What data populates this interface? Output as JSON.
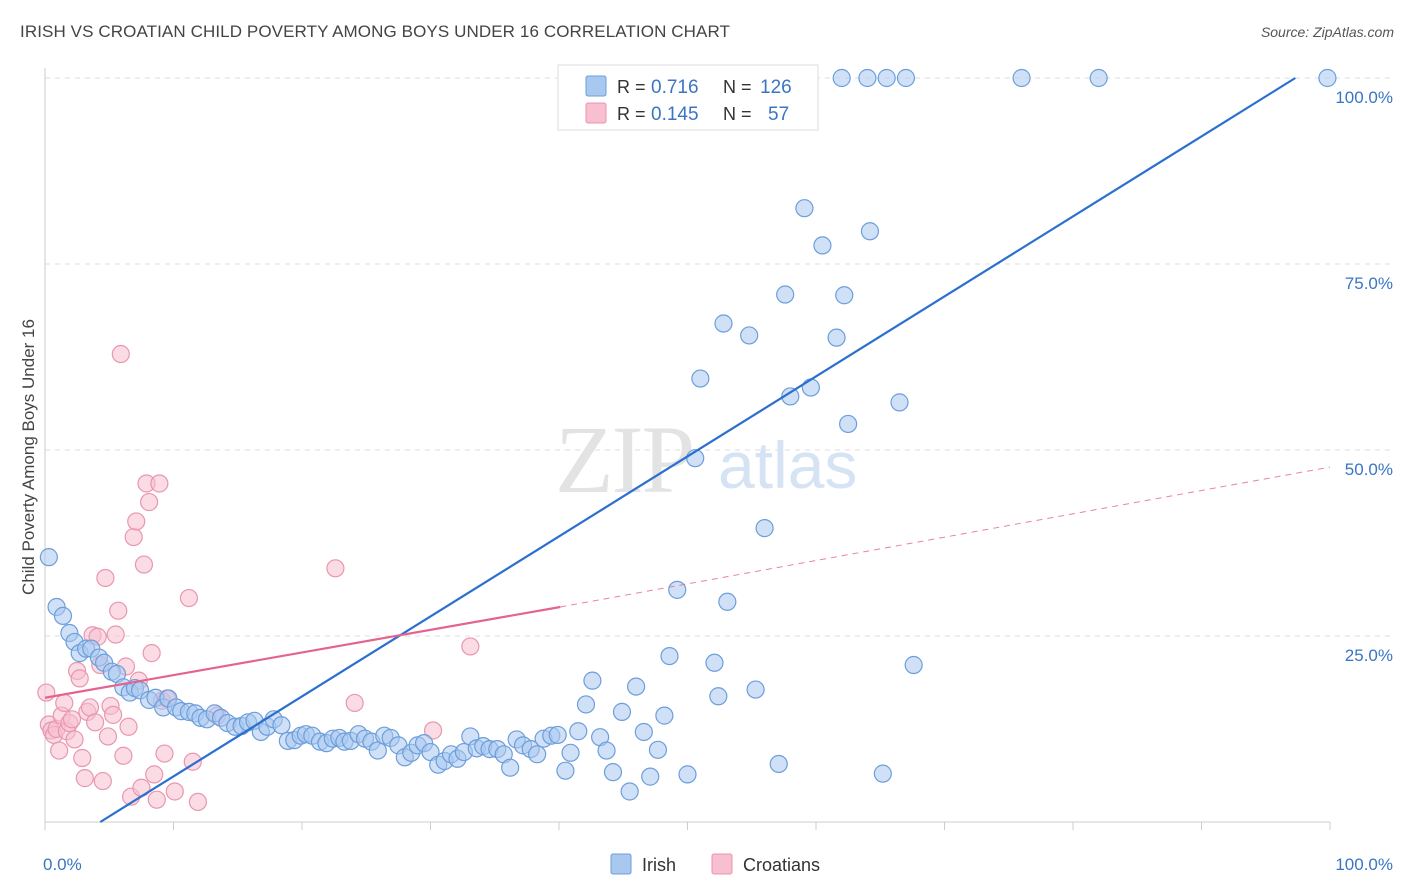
{
  "title": "IRISH VS CROATIAN CHILD POVERTY AMONG BOYS UNDER 16 CORRELATION CHART",
  "source": "Source: ZipAtlas.com",
  "watermark": {
    "part1": "ZIP",
    "part2": "atlas"
  },
  "colors": {
    "irish_fill": "#a9c8f0",
    "irish_stroke": "#6c9edb",
    "irish_line": "#2b6fcf",
    "croatian_fill": "#f7bfd0",
    "croatian_stroke": "#e996b0",
    "croatian_line": "#e4638f",
    "grid": "#dddddd",
    "tick_text": "#3a75c4"
  },
  "legend": {
    "rows": [
      {
        "r_label": "R =",
        "r_value": "0.716",
        "n_label": "N =",
        "n_value": "126"
      },
      {
        "r_label": "R =",
        "r_value": "0.145",
        "n_label": "N =",
        "n_value": "57"
      }
    ],
    "bottom": [
      "Irish",
      "Croatians"
    ]
  },
  "chart_data": {
    "type": "scatter",
    "title": "IRISH VS CROATIAN CHILD POVERTY AMONG BOYS UNDER 16 CORRELATION CHART",
    "xlabel": "",
    "ylabel": "Child Poverty Among Boys Under 16",
    "xlim": [
      0,
      100
    ],
    "ylim": [
      0,
      100
    ],
    "x_tick_labels": [
      "0.0%",
      "100.0%"
    ],
    "y_tick_labels": [
      "25.0%",
      "50.0%",
      "75.0%",
      "100.0%"
    ],
    "y_ticks": [
      25,
      50,
      75,
      100
    ],
    "grid": true,
    "legend_position": "top-center",
    "series": [
      {
        "name": "Irish",
        "R": 0.716,
        "N": 126,
        "trend": {
          "x": [
            4.3,
            97.3
          ],
          "y": [
            0,
            100
          ]
        },
        "points": [
          [
            0.3,
            35.6
          ],
          [
            0.9,
            28.9
          ],
          [
            1.4,
            27.7
          ],
          [
            1.9,
            25.4
          ],
          [
            2.3,
            24.2
          ],
          [
            2.7,
            22.7
          ],
          [
            3.2,
            23.3
          ],
          [
            3.6,
            23.3
          ],
          [
            4.2,
            22.1
          ],
          [
            4.6,
            21.4
          ],
          [
            5.2,
            20.2
          ],
          [
            5.6,
            19.9
          ],
          [
            6.1,
            18.1
          ],
          [
            6.6,
            17.4
          ],
          [
            7.0,
            18.0
          ],
          [
            7.4,
            17.7
          ],
          [
            8.1,
            16.4
          ],
          [
            8.6,
            16.7
          ],
          [
            9.2,
            15.4
          ],
          [
            9.6,
            16.6
          ],
          [
            10.2,
            15.4
          ],
          [
            10.6,
            14.9
          ],
          [
            11.2,
            14.8
          ],
          [
            11.7,
            14.6
          ],
          [
            12.1,
            14.0
          ],
          [
            12.6,
            13.8
          ],
          [
            13.2,
            14.6
          ],
          [
            13.7,
            14.0
          ],
          [
            14.2,
            13.3
          ],
          [
            14.8,
            12.8
          ],
          [
            15.3,
            12.9
          ],
          [
            15.8,
            13.4
          ],
          [
            16.3,
            13.6
          ],
          [
            16.8,
            12.1
          ],
          [
            17.3,
            12.8
          ],
          [
            17.8,
            13.8
          ],
          [
            18.4,
            13.0
          ],
          [
            18.9,
            10.9
          ],
          [
            19.4,
            11.0
          ],
          [
            19.9,
            11.6
          ],
          [
            20.3,
            11.8
          ],
          [
            20.8,
            11.6
          ],
          [
            21.4,
            10.8
          ],
          [
            21.9,
            10.6
          ],
          [
            22.4,
            11.2
          ],
          [
            22.9,
            11.3
          ],
          [
            23.3,
            10.8
          ],
          [
            23.8,
            10.9
          ],
          [
            24.4,
            11.8
          ],
          [
            24.9,
            11.2
          ],
          [
            25.4,
            10.8
          ],
          [
            25.9,
            9.6
          ],
          [
            26.4,
            11.6
          ],
          [
            26.9,
            11.3
          ],
          [
            27.5,
            10.3
          ],
          [
            28.0,
            8.7
          ],
          [
            28.5,
            9.3
          ],
          [
            29.0,
            10.3
          ],
          [
            29.5,
            10.6
          ],
          [
            30.0,
            9.4
          ],
          [
            30.6,
            7.7
          ],
          [
            31.1,
            8.2
          ],
          [
            31.6,
            9.1
          ],
          [
            32.1,
            8.5
          ],
          [
            32.6,
            9.4
          ],
          [
            33.1,
            11.5
          ],
          [
            33.6,
            9.9
          ],
          [
            34.1,
            10.2
          ],
          [
            34.6,
            9.8
          ],
          [
            35.2,
            9.8
          ],
          [
            35.7,
            9.1
          ],
          [
            36.2,
            7.3
          ],
          [
            36.7,
            11.1
          ],
          [
            37.2,
            10.3
          ],
          [
            37.8,
            9.8
          ],
          [
            38.3,
            9.1
          ],
          [
            38.8,
            11.2
          ],
          [
            39.4,
            11.6
          ],
          [
            39.9,
            11.7
          ],
          [
            40.5,
            6.9
          ],
          [
            40.9,
            9.3
          ],
          [
            41.5,
            12.2
          ],
          [
            42.1,
            15.8
          ],
          [
            42.6,
            19.0
          ],
          [
            43.2,
            11.4
          ],
          [
            43.7,
            9.6
          ],
          [
            44.2,
            6.7
          ],
          [
            44.9,
            14.8
          ],
          [
            45.5,
            4.1
          ],
          [
            46.0,
            18.2
          ],
          [
            46.6,
            12.1
          ],
          [
            47.1,
            6.1
          ],
          [
            47.7,
            9.7
          ],
          [
            48.2,
            14.3
          ],
          [
            48.6,
            22.3
          ],
          [
            49.2,
            31.2
          ],
          [
            50.0,
            6.4
          ],
          [
            50.6,
            48.9
          ],
          [
            51.0,
            59.6
          ],
          [
            52.1,
            21.4
          ],
          [
            52.4,
            16.9
          ],
          [
            52.8,
            67.0
          ],
          [
            53.1,
            29.6
          ],
          [
            54.8,
            65.4
          ],
          [
            55.3,
            17.8
          ],
          [
            56.0,
            39.5
          ],
          [
            57.1,
            7.8
          ],
          [
            57.6,
            70.9
          ],
          [
            58.0,
            57.2
          ],
          [
            59.1,
            82.5
          ],
          [
            59.6,
            58.4
          ],
          [
            60.5,
            77.5
          ],
          [
            61.6,
            65.1
          ],
          [
            62.2,
            70.8
          ],
          [
            62.5,
            53.5
          ],
          [
            64.2,
            79.4
          ],
          [
            65.2,
            6.5
          ],
          [
            66.5,
            56.4
          ],
          [
            67.6,
            21.1
          ],
          [
            62.0,
            100
          ],
          [
            64.0,
            100
          ],
          [
            65.5,
            100
          ],
          [
            67.0,
            100
          ],
          [
            76.0,
            100
          ],
          [
            82.0,
            100
          ],
          [
            99.8,
            100
          ]
        ]
      },
      {
        "name": "Croatians",
        "R": 0.145,
        "N": 57,
        "trend": {
          "x": [
            0,
            40.1
          ],
          "y": [
            16.7,
            28.9
          ]
        },
        "trend_dashed": {
          "x": [
            40.1,
            100
          ],
          "y": [
            28.9,
            47.7
          ]
        },
        "points": [
          [
            0.1,
            17.4
          ],
          [
            0.3,
            13.1
          ],
          [
            0.5,
            12.3
          ],
          [
            0.7,
            11.7
          ],
          [
            0.9,
            12.5
          ],
          [
            1.1,
            9.6
          ],
          [
            1.3,
            14.3
          ],
          [
            1.5,
            16.0
          ],
          [
            1.7,
            12.2
          ],
          [
            1.9,
            13.3
          ],
          [
            2.1,
            13.8
          ],
          [
            2.3,
            11.1
          ],
          [
            2.5,
            20.3
          ],
          [
            2.7,
            19.3
          ],
          [
            2.9,
            8.6
          ],
          [
            3.1,
            5.9
          ],
          [
            3.3,
            14.8
          ],
          [
            3.5,
            15.4
          ],
          [
            3.7,
            25.1
          ],
          [
            3.9,
            13.4
          ],
          [
            4.1,
            24.9
          ],
          [
            4.3,
            21.1
          ],
          [
            4.5,
            5.5
          ],
          [
            4.7,
            32.8
          ],
          [
            4.9,
            11.5
          ],
          [
            5.1,
            15.6
          ],
          [
            5.3,
            14.4
          ],
          [
            5.5,
            25.2
          ],
          [
            5.7,
            28.4
          ],
          [
            5.9,
            62.9
          ],
          [
            6.1,
            8.9
          ],
          [
            6.3,
            20.9
          ],
          [
            6.5,
            12.8
          ],
          [
            6.7,
            3.4
          ],
          [
            6.9,
            38.3
          ],
          [
            7.1,
            40.4
          ],
          [
            7.3,
            19.0
          ],
          [
            7.5,
            4.6
          ],
          [
            7.7,
            34.6
          ],
          [
            7.9,
            45.5
          ],
          [
            8.1,
            43.0
          ],
          [
            8.3,
            22.7
          ],
          [
            8.5,
            6.4
          ],
          [
            8.7,
            3.0
          ],
          [
            8.9,
            45.5
          ],
          [
            9.1,
            16.3
          ],
          [
            9.3,
            9.2
          ],
          [
            9.5,
            16.6
          ],
          [
            10.1,
            4.1
          ],
          [
            11.2,
            30.1
          ],
          [
            11.5,
            8.1
          ],
          [
            11.9,
            2.7
          ],
          [
            13.4,
            14.3
          ],
          [
            22.6,
            34.1
          ],
          [
            24.1,
            16.0
          ],
          [
            30.2,
            12.3
          ],
          [
            33.1,
            23.6
          ]
        ]
      }
    ]
  }
}
